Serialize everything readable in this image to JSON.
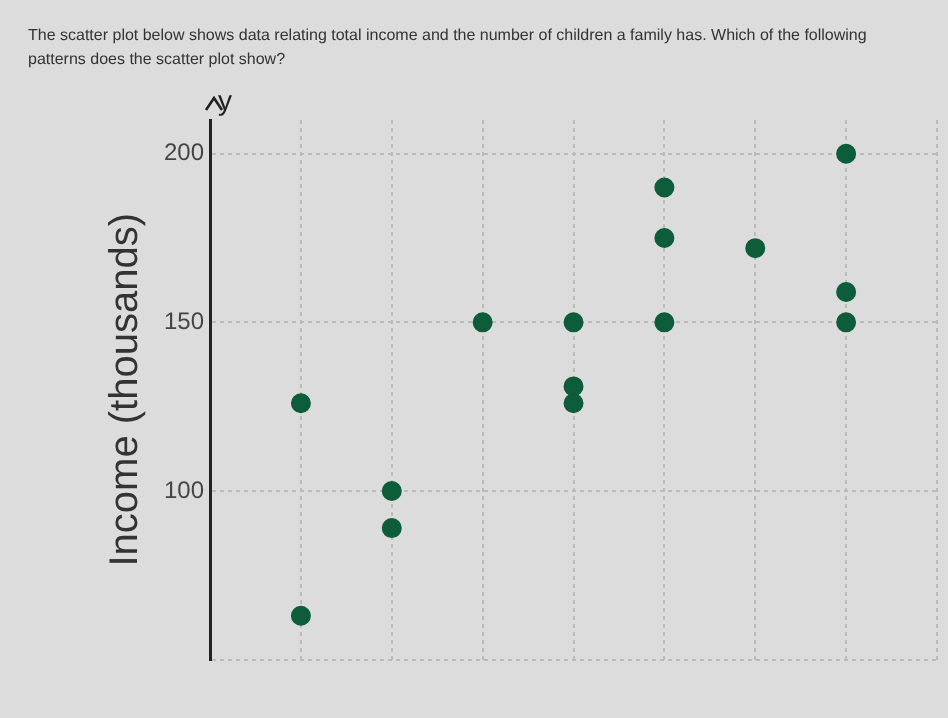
{
  "chart_data": {
    "type": "scatter",
    "title": "The scatter plot below shows data relating total income and the number of children a family has. Which of the following patterns does the scatter plot show?",
    "ylabel": "Income (thousands)",
    "annotations": [
      "y"
    ],
    "categories": [
      null,
      null,
      null,
      null,
      null,
      null,
      null
    ],
    "series": [
      {
        "color": "#0d5c3a",
        "values": [
          126,
          100,
          150,
          150,
          190,
          172,
          200
        ]
      },
      {
        "color": "#0d5c3a",
        "values": [
          63,
          89,
          null,
          131,
          175,
          null,
          159
        ]
      },
      {
        "color": "#0d5c3a",
        "values": [
          null,
          null,
          null,
          126,
          150,
          null,
          150
        ]
      }
    ],
    "ylim": [
      50,
      210
    ],
    "yticks": [
      {
        "value": 50,
        "label": null
      },
      100,
      150,
      200
    ],
    "grid": true,
    "legend": false,
    "marker": "circle",
    "tick_labels": "y"
  }
}
